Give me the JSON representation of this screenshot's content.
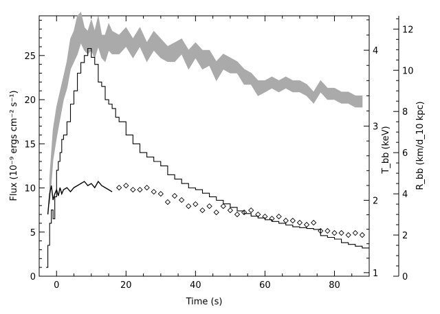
{
  "chart_data": {
    "type": "line",
    "title": "",
    "xlabel": "Time (s)",
    "ylabel": "Flux (10⁻⁹ ergs cm⁻² s⁻¹)",
    "ylabel_temp": "T_bb (keV)",
    "ylabel_radius": "R_bb (km/d_10 kpc)",
    "xlim": [
      -5,
      90
    ],
    "ylim": [
      0,
      29.5
    ],
    "temp_axis": {
      "ticks": [
        1,
        2,
        3,
        4
      ],
      "tick_labels": [
        "1",
        "2",
        "3",
        "4"
      ],
      "flux_at_ticks": [
        0.4,
        8.6,
        17.0,
        25.6
      ]
    },
    "radius_axis": {
      "ticks": [
        0,
        2,
        4,
        6,
        8,
        10,
        12
      ],
      "tick_labels": [
        "0",
        "2",
        "4",
        "6",
        "8",
        "10",
        "12"
      ],
      "flux_per_unit": 2.333
    },
    "xticks": [
      0,
      20,
      40,
      60,
      80
    ],
    "xtick_labels": [
      "0",
      "20",
      "40",
      "60",
      "80"
    ],
    "yticks": [
      0,
      5,
      10,
      15,
      20,
      25
    ],
    "ytick_labels": [
      "0",
      "5",
      "10",
      "15",
      "20",
      "25"
    ],
    "series": [
      {
        "style": "step-line",
        "color": "#000000",
        "axis": "flux",
        "x": [
          -3,
          -2.5,
          -2,
          -1.5,
          -1,
          -0.5,
          0,
          0.5,
          1,
          1.5,
          2,
          3,
          4,
          5,
          6,
          7,
          8,
          9,
          10,
          11,
          12,
          13,
          14,
          15,
          16,
          17,
          18,
          20,
          22,
          24,
          26,
          28,
          30,
          32,
          34,
          36,
          38,
          40,
          42,
          44,
          46,
          48,
          50,
          52,
          54,
          56,
          58,
          60,
          62,
          64,
          66,
          68,
          70,
          72,
          74,
          76,
          78,
          80,
          82,
          84,
          86,
          88
        ],
        "y": [
          1.0,
          3.5,
          6.0,
          7.5,
          6.5,
          9.0,
          12.0,
          13.0,
          14.0,
          15.5,
          16.0,
          17.5,
          19.5,
          21.0,
          23.0,
          24.2,
          25.0,
          25.8,
          24.8,
          24.0,
          22.0,
          21.5,
          20.0,
          19.5,
          19.0,
          18.0,
          17.5,
          16.0,
          15.0,
          14.0,
          13.5,
          13.0,
          12.5,
          11.5,
          11.0,
          10.5,
          10.0,
          9.8,
          9.4,
          9.0,
          8.6,
          8.2,
          7.8,
          7.4,
          7.1,
          6.8,
          6.6,
          6.4,
          6.2,
          6.0,
          5.8,
          5.6,
          5.5,
          5.4,
          5.3,
          4.6,
          4.4,
          4.2,
          3.8,
          3.6,
          3.4,
          3.2
        ]
      },
      {
        "style": "line",
        "color": "#000000",
        "axis": "radius",
        "x": [
          -2.5,
          -2,
          -1.5,
          -1,
          -0.5,
          0,
          0.5,
          1,
          1.5,
          2,
          3,
          4,
          5,
          6,
          7,
          8,
          9,
          10,
          11,
          12,
          13,
          14,
          15,
          16
        ],
        "y": [
          3.0,
          4.0,
          4.4,
          3.7,
          4.0,
          4.2,
          3.9,
          4.3,
          4.0,
          4.2,
          4.3,
          4.1,
          4.3,
          4.4,
          4.5,
          4.6,
          4.4,
          4.5,
          4.3,
          4.6,
          4.4,
          4.3,
          4.2,
          4.1
        ]
      },
      {
        "style": "band",
        "color": "#aaaaaa",
        "axis": "temp",
        "x": [
          -2,
          -1,
          0,
          1,
          2,
          3,
          4,
          5,
          6,
          7,
          8,
          9,
          10,
          11,
          12,
          13,
          14,
          15,
          16,
          18,
          20,
          22,
          24,
          26,
          28,
          30,
          32,
          34,
          36,
          38,
          40,
          42,
          44,
          46,
          48,
          50,
          52,
          54,
          56,
          58,
          60,
          62,
          64,
          66,
          68,
          70,
          72,
          74,
          76,
          78,
          80,
          82,
          84,
          86,
          88
        ],
        "y_low": [
          1.95,
          2.55,
          2.85,
          3.1,
          3.35,
          3.5,
          3.75,
          3.85,
          3.95,
          4.1,
          4.0,
          3.95,
          4.0,
          3.9,
          4.05,
          3.9,
          3.85,
          4.0,
          3.95,
          3.95,
          4.05,
          3.9,
          4.05,
          3.85,
          4.0,
          3.9,
          3.85,
          3.85,
          3.95,
          3.75,
          3.9,
          3.75,
          3.8,
          3.6,
          3.75,
          3.7,
          3.7,
          3.55,
          3.55,
          3.4,
          3.45,
          3.5,
          3.45,
          3.5,
          3.45,
          3.45,
          3.4,
          3.3,
          3.45,
          3.35,
          3.35,
          3.3,
          3.3,
          3.25,
          3.25
        ],
        "y_high": [
          2.3,
          2.95,
          3.25,
          3.45,
          3.65,
          3.85,
          4.15,
          4.25,
          4.45,
          4.5,
          4.3,
          4.25,
          4.4,
          4.25,
          4.45,
          4.2,
          4.2,
          4.35,
          4.25,
          4.2,
          4.3,
          4.15,
          4.3,
          4.1,
          4.25,
          4.15,
          4.05,
          4.1,
          4.15,
          4.0,
          4.1,
          4.0,
          4.0,
          3.85,
          3.95,
          3.9,
          3.85,
          3.75,
          3.7,
          3.6,
          3.6,
          3.65,
          3.6,
          3.65,
          3.6,
          3.6,
          3.55,
          3.45,
          3.6,
          3.5,
          3.5,
          3.45,
          3.45,
          3.4,
          3.4
        ]
      },
      {
        "style": "diamond",
        "color": "#000000",
        "axis": "radius",
        "x": [
          18,
          20,
          22,
          24,
          26,
          28,
          30,
          32,
          34,
          36,
          38,
          40,
          42,
          44,
          46,
          48,
          50,
          52,
          54,
          56,
          58,
          60,
          62,
          64,
          66,
          68,
          70,
          72,
          74,
          76,
          78,
          80,
          82,
          84,
          86,
          88
        ],
        "y": [
          4.3,
          4.4,
          4.2,
          4.2,
          4.3,
          4.1,
          4.0,
          3.6,
          3.9,
          3.7,
          3.4,
          3.5,
          3.2,
          3.4,
          3.1,
          3.4,
          3.2,
          3.0,
          3.1,
          3.2,
          3.0,
          2.9,
          2.8,
          2.9,
          2.7,
          2.7,
          2.6,
          2.5,
          2.6,
          2.2,
          2.2,
          2.1,
          2.1,
          2.0,
          2.1,
          2.0
        ]
      }
    ]
  }
}
